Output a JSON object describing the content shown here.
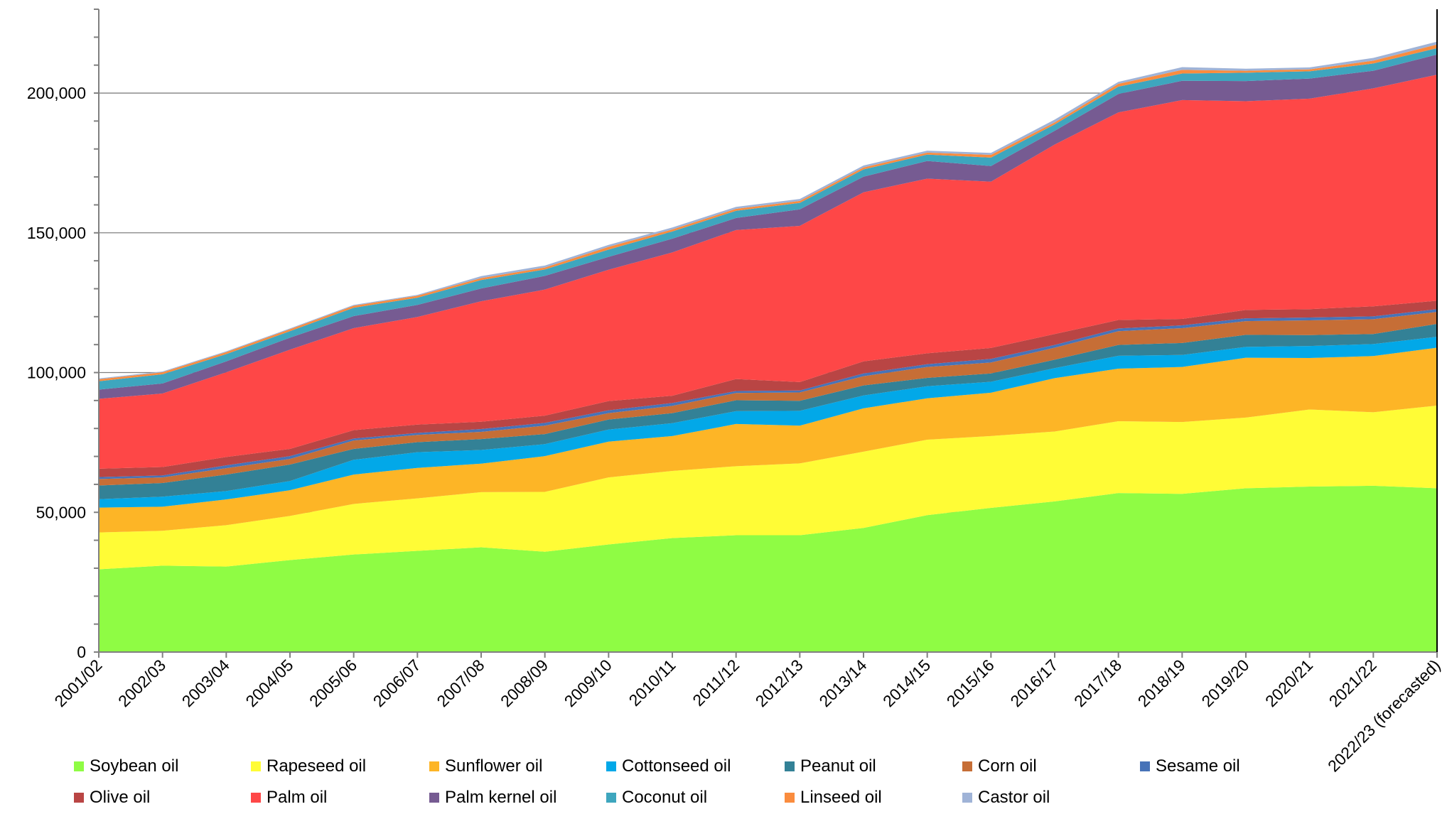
{
  "chart_data": {
    "type": "area",
    "stacked": true,
    "title": "",
    "xlabel": "",
    "ylabel": "",
    "ylim": [
      0,
      230000
    ],
    "y_ticks": [
      0,
      50000,
      100000,
      150000,
      200000
    ],
    "y_tick_labels": [
      "0",
      "50,000",
      "100,000",
      "150,000",
      "200,000"
    ],
    "grid": "horizontal major lines",
    "legend_position": "bottom",
    "categories": [
      "2001/02",
      "2002/03",
      "2003/04",
      "2004/05",
      "2005/06",
      "2006/07",
      "2007/08",
      "2008/09",
      "2009/10",
      "2010/11",
      "2011/12",
      "2012/13",
      "2013/14",
      "2014/15",
      "2015/16",
      "2016/17",
      "2017/18",
      "2018/19",
      "2019/20",
      "2020/21",
      "2021/22",
      "2022/23 (forecasted)"
    ],
    "series": [
      {
        "name": "Soybean oil",
        "color": "#8ffc44",
        "values": [
          29600,
          30900,
          30600,
          32900,
          34900,
          36200,
          37500,
          35900,
          38500,
          40800,
          41800,
          41800,
          44400,
          49000,
          51600,
          53900,
          56900,
          56600,
          58600,
          59200,
          59500,
          58600
        ]
      },
      {
        "name": "Rapeseed oil",
        "color": "#fffc36",
        "values": [
          13200,
          12500,
          14800,
          15800,
          18100,
          18800,
          19700,
          21400,
          24000,
          24000,
          24700,
          25700,
          27300,
          27000,
          25700,
          25000,
          25700,
          25700,
          25300,
          27600,
          26300,
          29600
        ]
      },
      {
        "name": "Sunflower oil",
        "color": "#fdb526",
        "values": [
          8900,
          8600,
          9200,
          9200,
          10500,
          10900,
          10200,
          12800,
          12800,
          12500,
          15100,
          13500,
          15500,
          14800,
          15500,
          19100,
          18800,
          19700,
          21400,
          18400,
          20100,
          20700
        ]
      },
      {
        "name": "Cottonseed oil",
        "color": "#02a8e8",
        "values": [
          3000,
          3600,
          3000,
          3300,
          5300,
          5600,
          4900,
          4300,
          4300,
          4600,
          4600,
          5300,
          4600,
          4300,
          3900,
          3600,
          4600,
          4300,
          3900,
          4300,
          4300,
          3900
        ]
      },
      {
        "name": "Peanut oil",
        "color": "#338196",
        "values": [
          4900,
          4900,
          5900,
          5900,
          3900,
          3600,
          3900,
          3600,
          3600,
          3600,
          3900,
          3600,
          3600,
          3000,
          3000,
          3000,
          3900,
          4300,
          4300,
          3900,
          3600,
          4600
        ]
      },
      {
        "name": "Corn oil",
        "color": "#c66e36",
        "values": [
          2300,
          2000,
          2300,
          2000,
          3000,
          2600,
          2600,
          3000,
          2300,
          2600,
          2600,
          3000,
          3300,
          3900,
          3900,
          4300,
          4900,
          5300,
          4900,
          5300,
          5300,
          4300
        ]
      },
      {
        "name": "Sesame oil",
        "color": "#4773b8",
        "values": [
          700,
          700,
          1000,
          1000,
          700,
          700,
          1000,
          1000,
          1000,
          1000,
          700,
          700,
          1000,
          1000,
          1300,
          1000,
          1000,
          1000,
          1000,
          1000,
          1000,
          1000
        ]
      },
      {
        "name": "Olive oil",
        "color": "#b94544",
        "values": [
          3000,
          3000,
          3000,
          2600,
          3000,
          3000,
          2600,
          2600,
          3300,
          2600,
          4300,
          3000,
          4300,
          3900,
          3900,
          3900,
          3000,
          2300,
          3000,
          3000,
          3600,
          3000
        ]
      },
      {
        "name": "Palm oil",
        "color": "#fe4747",
        "values": [
          25000,
          26300,
          30300,
          35500,
          36500,
          38500,
          43100,
          45100,
          47000,
          51300,
          53300,
          55900,
          60500,
          62500,
          59500,
          67800,
          74300,
          78300,
          74700,
          75300,
          78000,
          80900
        ]
      },
      {
        "name": "Palm kernel oil",
        "color": "#765b92",
        "values": [
          3300,
          3600,
          3900,
          4300,
          4300,
          4300,
          4600,
          4900,
          4600,
          4900,
          4300,
          5900,
          5600,
          6300,
          5600,
          4900,
          6600,
          6900,
          7200,
          7200,
          6300,
          7200
        ]
      },
      {
        "name": "Coconut oil",
        "color": "#3ea6be",
        "values": [
          3000,
          3300,
          2600,
          2300,
          3000,
          2600,
          3000,
          2300,
          2600,
          2600,
          2600,
          2300,
          2600,
          2300,
          3000,
          2300,
          2600,
          2600,
          3000,
          2600,
          2600,
          2300
        ]
      },
      {
        "name": "Linseed oil",
        "color": "#fa8c3e",
        "values": [
          700,
          700,
          700,
          700,
          700,
          700,
          700,
          700,
          1000,
          700,
          700,
          700,
          700,
          700,
          1000,
          700,
          1000,
          1300,
          700,
          700,
          1000,
          1300
        ]
      },
      {
        "name": "Castor oil",
        "color": "#9fb3d7",
        "values": [
          300,
          300,
          300,
          300,
          300,
          300,
          700,
          700,
          700,
          700,
          700,
          700,
          700,
          700,
          700,
          1000,
          700,
          1000,
          700,
          700,
          1000,
          1000
        ]
      }
    ]
  }
}
